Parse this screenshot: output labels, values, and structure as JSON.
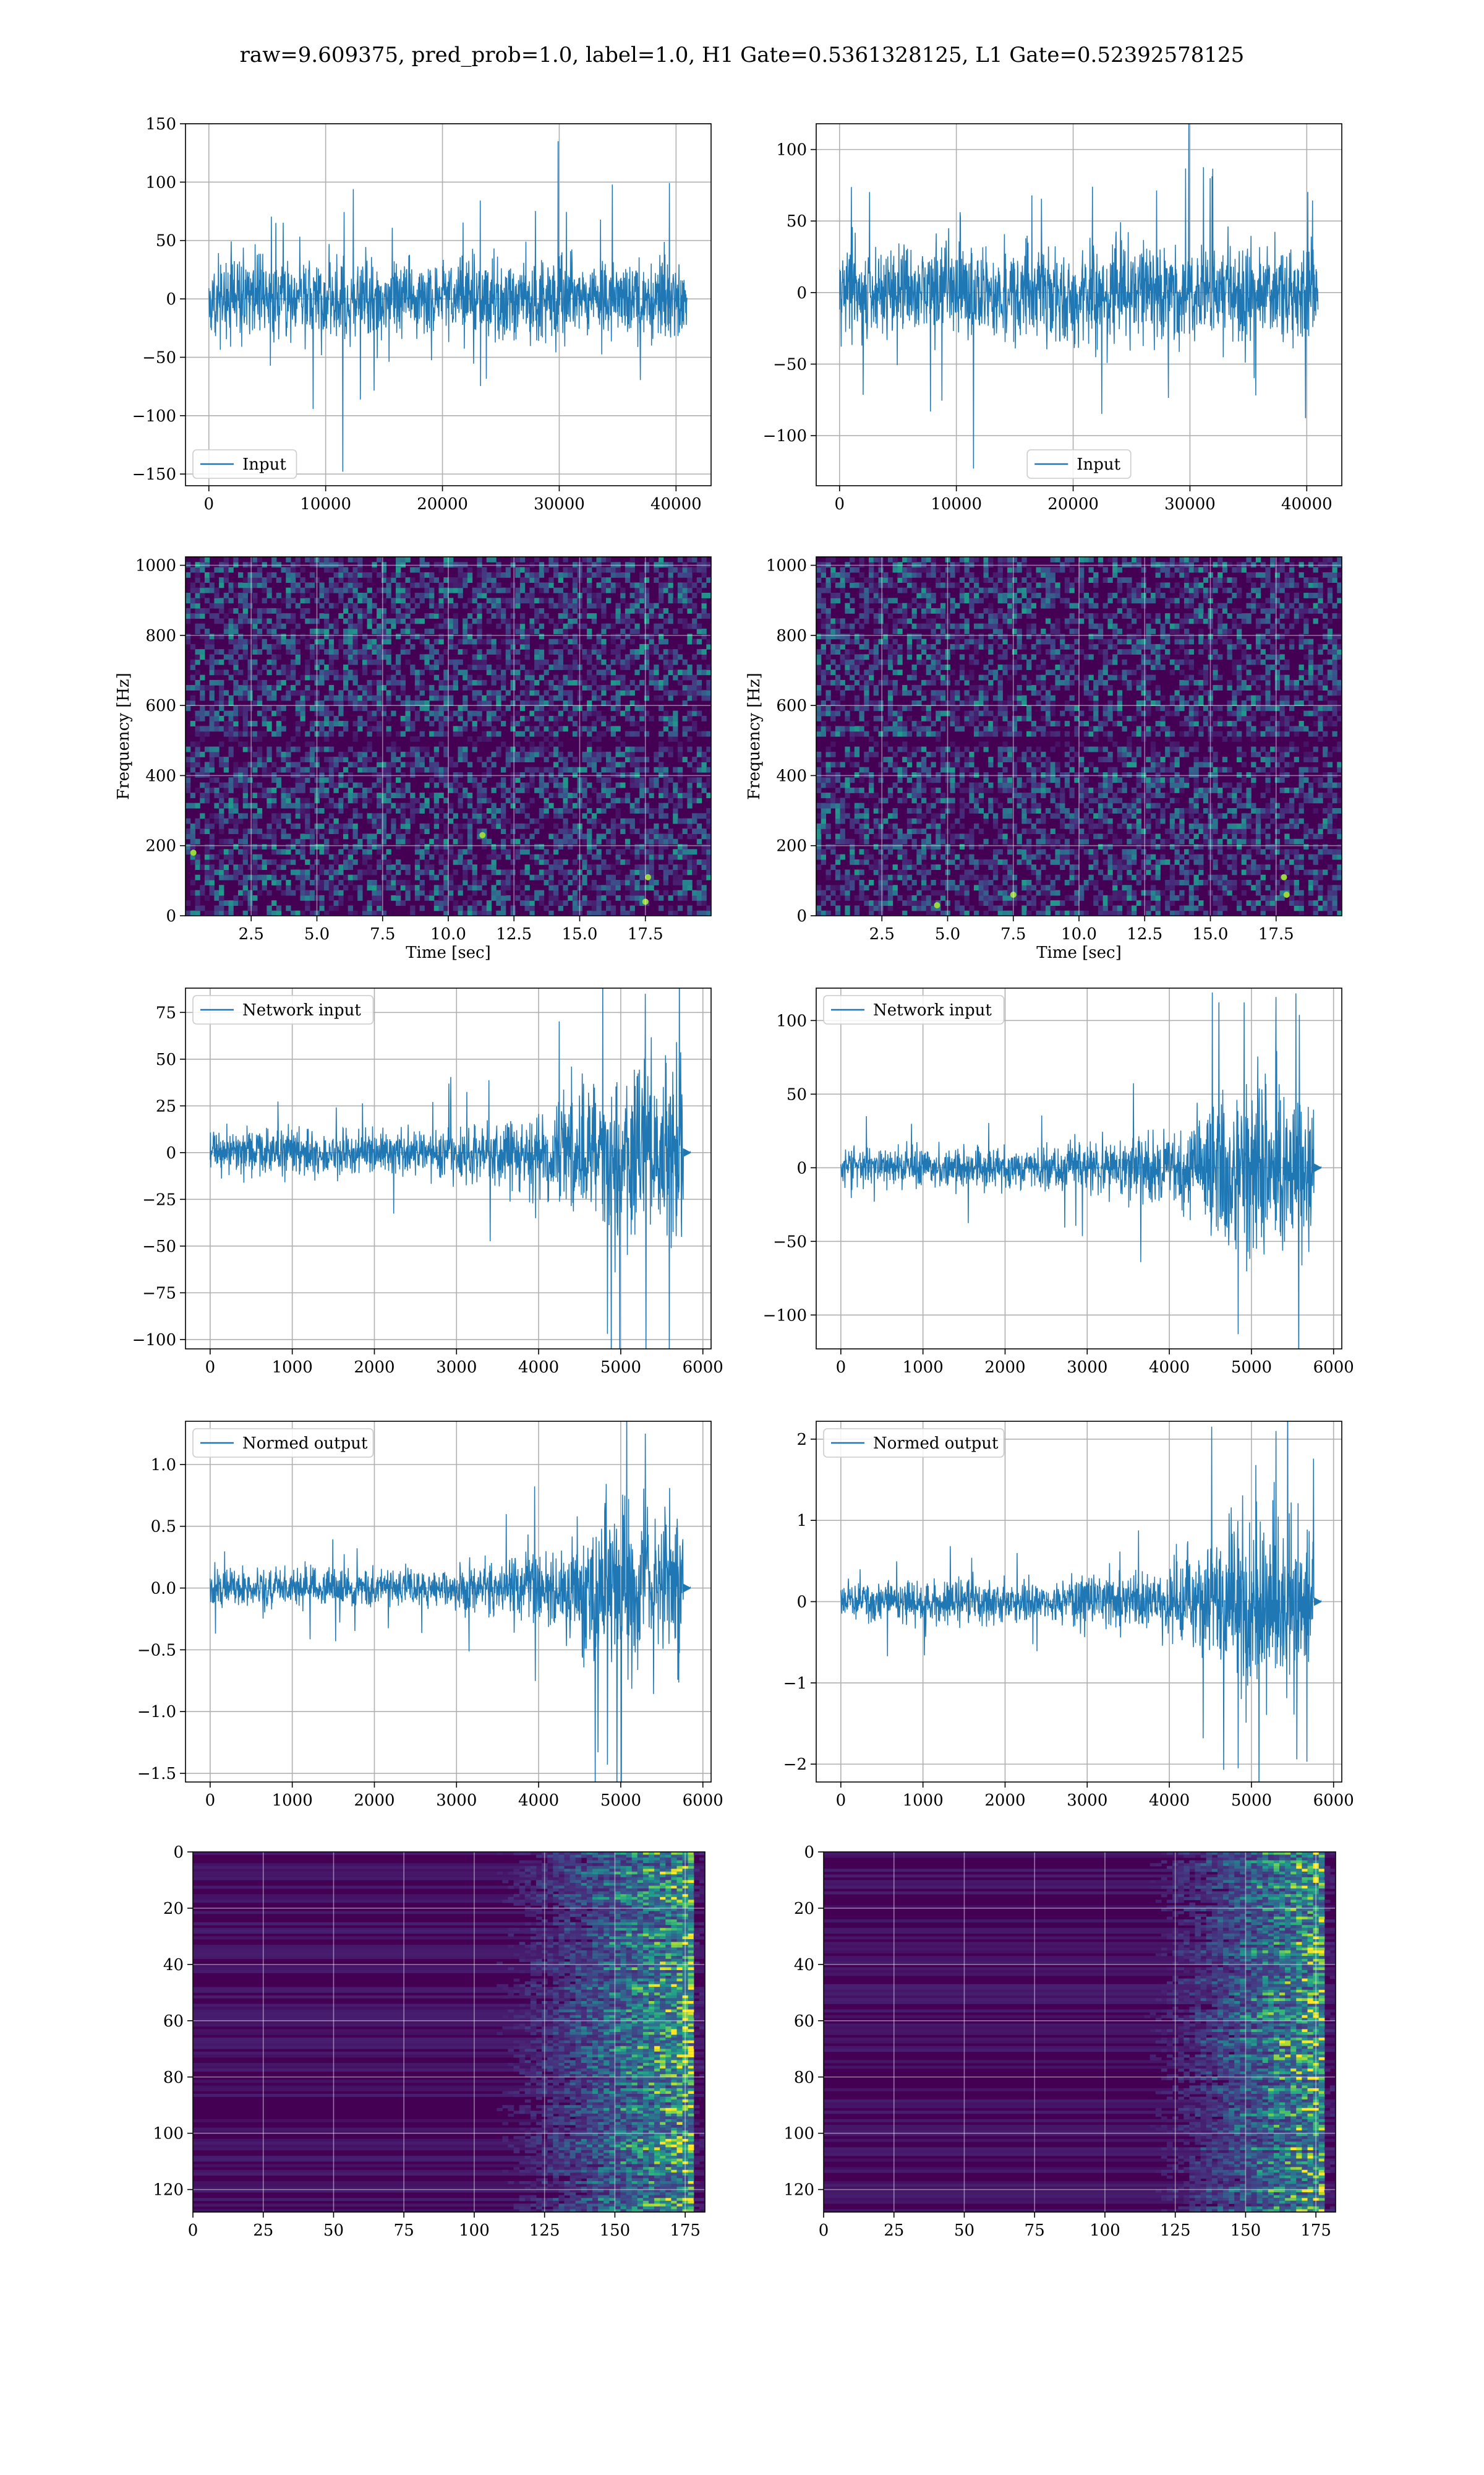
{
  "figure": {
    "suptitle": "raw=9.609375, pred_prob=1.0, label=1.0, H1 Gate=0.5361328125, L1 Gate=0.52392578125"
  },
  "colors": {
    "line": "#1f77b4",
    "viridis_low": "#440154",
    "viridis_high": "#fde725"
  },
  "chart_data": [
    {
      "id": "h1-input",
      "type": "line",
      "detector": "H1",
      "series": [
        {
          "name": "Input"
        }
      ],
      "legend": "lower left",
      "xlim": [
        -2000,
        43000
      ],
      "ylim": [
        -160,
        150
      ],
      "xticks": [
        0,
        10000,
        20000,
        30000,
        40000
      ],
      "yticks": [
        -150,
        -100,
        -50,
        0,
        50,
        100,
        150
      ],
      "xlabel": "",
      "ylabel": "",
      "signal": {
        "x_start": 0,
        "x_end": 40960,
        "envelope": [
          [
            0,
            40
          ],
          [
            40960,
            40
          ]
        ],
        "peak_max": 135,
        "peak_min": -148
      },
      "grid": true
    },
    {
      "id": "l1-input",
      "type": "line",
      "detector": "L1",
      "series": [
        {
          "name": "Input"
        }
      ],
      "legend": "lower center",
      "xlim": [
        -2000,
        43000
      ],
      "ylim": [
        -135,
        118
      ],
      "xticks": [
        0,
        10000,
        20000,
        30000,
        40000
      ],
      "yticks": [
        -100,
        -50,
        0,
        50,
        100
      ],
      "xlabel": "",
      "ylabel": "",
      "signal": {
        "x_start": 0,
        "x_end": 40960,
        "envelope": [
          [
            0,
            38
          ],
          [
            40960,
            38
          ]
        ],
        "peak_max": 118,
        "peak_min": -123
      },
      "grid": true
    },
    {
      "id": "h1-spectrogram",
      "type": "heatmap",
      "detector": "H1",
      "xlim": [
        0,
        20
      ],
      "ylim": [
        0,
        1024
      ],
      "xticks": [
        2.5,
        5.0,
        7.5,
        10.0,
        12.5,
        15.0,
        17.5
      ],
      "yticks": [
        0,
        200,
        400,
        600,
        800,
        1000
      ],
      "xlabel": "Time [sec]",
      "ylabel": "Frequency [Hz]",
      "colormap": "viridis",
      "dark_band_hz": 500,
      "bright_spots": [
        [
          17.6,
          110
        ],
        [
          17.5,
          40
        ],
        [
          11.3,
          230
        ],
        [
          0.3,
          180
        ]
      ],
      "grid": true
    },
    {
      "id": "l1-spectrogram",
      "type": "heatmap",
      "detector": "L1",
      "xlim": [
        0,
        20
      ],
      "ylim": [
        0,
        1024
      ],
      "xticks": [
        2.5,
        5.0,
        7.5,
        10.0,
        12.5,
        15.0,
        17.5
      ],
      "yticks": [
        0,
        200,
        400,
        600,
        800,
        1000
      ],
      "xlabel": "Time [sec]",
      "ylabel": "Frequency [Hz]",
      "colormap": "viridis",
      "dark_band_hz": 500,
      "bright_spots": [
        [
          17.9,
          60
        ],
        [
          17.8,
          110
        ],
        [
          4.6,
          30
        ],
        [
          7.5,
          60
        ]
      ],
      "grid": true
    },
    {
      "id": "h1-network-input",
      "type": "line",
      "detector": "H1",
      "series": [
        {
          "name": "Network input"
        }
      ],
      "legend": "upper left",
      "xlim": [
        -300,
        6100
      ],
      "ylim": [
        -105,
        88
      ],
      "xticks": [
        0,
        1000,
        2000,
        3000,
        4000,
        5000,
        6000
      ],
      "yticks": [
        -100,
        -75,
        -50,
        -25,
        0,
        25,
        50,
        75
      ],
      "xlabel": "",
      "ylabel": "",
      "signal": {
        "x_start": 0,
        "x_end": 5760,
        "tail_end": 5850,
        "envelope": [
          [
            0,
            14
          ],
          [
            2500,
            14
          ],
          [
            3500,
            20
          ],
          [
            4200,
            28
          ],
          [
            4600,
            50
          ],
          [
            5000,
            65
          ],
          [
            5400,
            60
          ],
          [
            5740,
            55
          ]
        ],
        "peak_max": 85,
        "peak_min": -97
      },
      "grid": true
    },
    {
      "id": "l1-network-input",
      "type": "line",
      "detector": "L1",
      "series": [
        {
          "name": "Network input"
        }
      ],
      "legend": "upper left",
      "xlim": [
        -300,
        6100
      ],
      "ylim": [
        -123,
        122
      ],
      "xticks": [
        0,
        1000,
        2000,
        3000,
        4000,
        5000,
        6000
      ],
      "yticks": [
        -100,
        -50,
        0,
        50,
        100
      ],
      "xlabel": "",
      "ylabel": "",
      "signal": {
        "x_start": 0,
        "x_end": 5760,
        "tail_end": 5850,
        "envelope": [
          [
            0,
            16
          ],
          [
            2500,
            16
          ],
          [
            3500,
            24
          ],
          [
            4300,
            35
          ],
          [
            4700,
            60
          ],
          [
            5000,
            80
          ],
          [
            5400,
            65
          ],
          [
            5740,
            55
          ]
        ],
        "peak_max": 116,
        "peak_min": -113
      },
      "grid": true
    },
    {
      "id": "h1-normed-output",
      "type": "line",
      "detector": "H1",
      "series": [
        {
          "name": "Normed output"
        }
      ],
      "legend": "upper left",
      "xlim": [
        -300,
        6100
      ],
      "ylim": [
        -1.57,
        1.35
      ],
      "xticks": [
        0,
        1000,
        2000,
        3000,
        4000,
        5000,
        6000
      ],
      "yticks": [
        -1.5,
        -1.0,
        -0.5,
        0.0,
        0.5,
        1.0
      ],
      "xlabel": "",
      "ylabel": "",
      "signal": {
        "x_start": 0,
        "x_end": 5760,
        "tail_end": 5850,
        "envelope": [
          [
            0,
            0.18
          ],
          [
            2500,
            0.18
          ],
          [
            3500,
            0.26
          ],
          [
            4200,
            0.38
          ],
          [
            4600,
            0.65
          ],
          [
            5000,
            0.88
          ],
          [
            5400,
            0.8
          ],
          [
            5740,
            0.7
          ]
        ],
        "peak_max": 1.25,
        "peak_min": -1.43
      },
      "grid": true
    },
    {
      "id": "l1-normed-output",
      "type": "line",
      "detector": "L1",
      "series": [
        {
          "name": "Normed output"
        }
      ],
      "legend": "upper left",
      "xlim": [
        -300,
        6100
      ],
      "ylim": [
        -2.22,
        2.22
      ],
      "xticks": [
        0,
        1000,
        2000,
        3000,
        4000,
        5000,
        6000
      ],
      "yticks": [
        -2,
        -1,
        0,
        1,
        2
      ],
      "xlabel": "",
      "ylabel": "",
      "signal": {
        "x_start": 0,
        "x_end": 5760,
        "tail_end": 5850,
        "envelope": [
          [
            0,
            0.3
          ],
          [
            2500,
            0.3
          ],
          [
            3500,
            0.45
          ],
          [
            4300,
            0.65
          ],
          [
            4700,
            1.1
          ],
          [
            5000,
            1.5
          ],
          [
            5400,
            1.2
          ],
          [
            5740,
            1.0
          ]
        ],
        "peak_max": 2.1,
        "peak_min": -2.05
      },
      "grid": true
    },
    {
      "id": "h1-feature-map",
      "type": "heatmap",
      "detector": "H1",
      "xlim": [
        0,
        182
      ],
      "ylim": [
        128,
        0
      ],
      "xticks": [
        0,
        25,
        50,
        75,
        100,
        125,
        150,
        175
      ],
      "yticks": [
        0,
        20,
        40,
        60,
        80,
        100,
        120
      ],
      "xlabel": "",
      "ylabel": "",
      "colormap": "viridis",
      "activation_onset": 105,
      "grid": true
    },
    {
      "id": "l1-feature-map",
      "type": "heatmap",
      "detector": "L1",
      "xlim": [
        0,
        182
      ],
      "ylim": [
        128,
        0
      ],
      "xticks": [
        0,
        25,
        50,
        75,
        100,
        125,
        150,
        175
      ],
      "yticks": [
        0,
        20,
        40,
        60,
        80,
        100,
        120
      ],
      "xlabel": "",
      "ylabel": "",
      "colormap": "viridis",
      "activation_onset": 115,
      "grid": true
    }
  ]
}
